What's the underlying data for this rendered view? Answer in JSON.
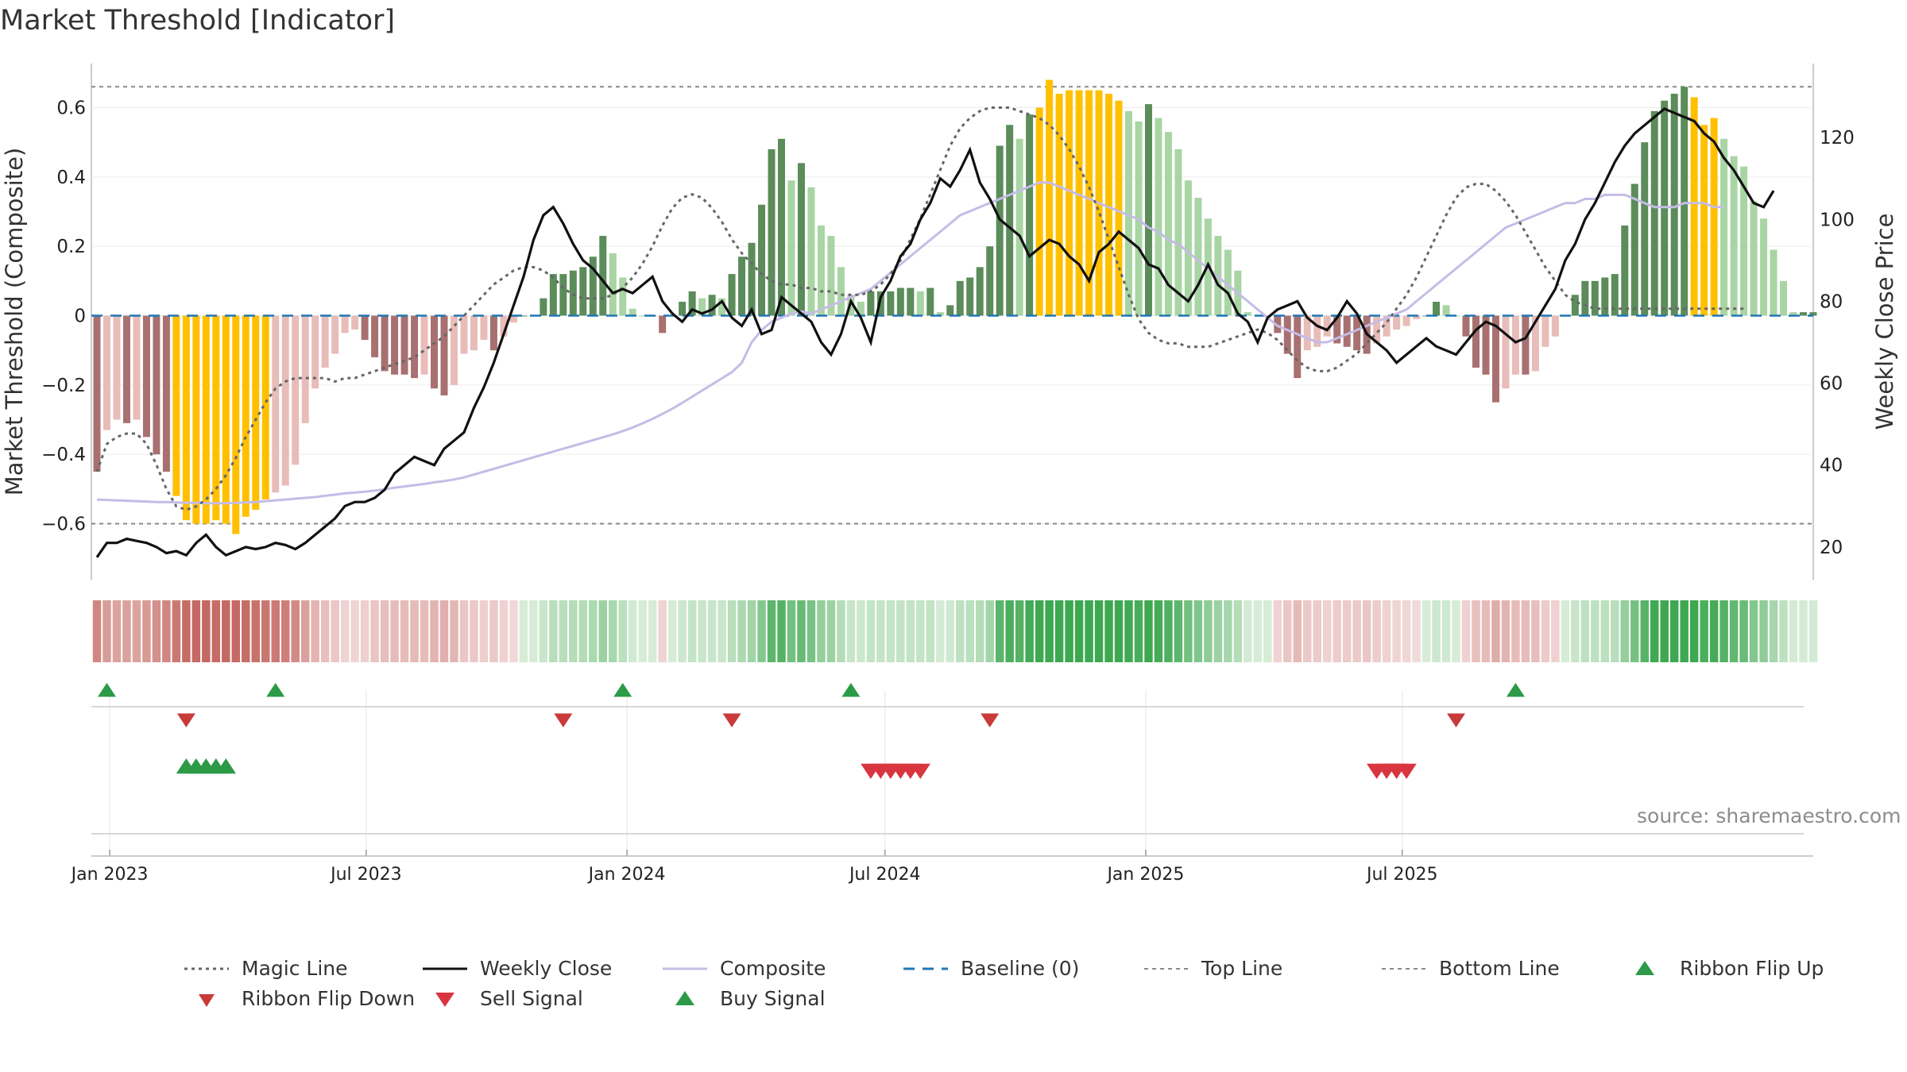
{
  "title": "Market Threshold [Indicator]",
  "source": "source: sharemaestro.com",
  "colors": {
    "weekly_close": "#111111",
    "composite": "#c5bce6",
    "magic_line": "#666666",
    "baseline": "#1f77b4",
    "threshold_lines": "#888888",
    "extreme": "#ffc000",
    "pos_strong": "#5b8c5a",
    "pos_weak": "#a8d5a3",
    "neg_strong": "#a87070",
    "neg_weak": "#e8bcb8",
    "buy": "#2c9a46",
    "sell": "#d93540"
  },
  "chart_data": {
    "type": "bar",
    "x_start": "2022-12-23",
    "x_step_days": 7,
    "x_ticks": [
      "Jan 2023",
      "Jul 2023",
      "Jan 2024",
      "Jul 2024",
      "Jan 2025",
      "Jul 2025"
    ],
    "left_axis": {
      "label": "Market Threshold (Composite)",
      "ticks": [
        "0.6",
        "0.4",
        "0.2",
        "0",
        "−0.2",
        "−0.4",
        "−0.6"
      ],
      "ylim": [
        -0.75,
        0.75
      ]
    },
    "right_axis": {
      "label": "Weekly Close Price",
      "ticks": [
        "120",
        "100",
        "80",
        "60",
        "40",
        "20"
      ],
      "ylim": [
        13,
        140
      ]
    },
    "top_line": 0.66,
    "bottom_line": -0.6,
    "threshold_bars": [
      -0.45,
      -0.33,
      -0.3,
      -0.31,
      -0.3,
      -0.35,
      -0.4,
      -0.45,
      -0.52,
      -0.59,
      -0.6,
      -0.6,
      -0.59,
      -0.6,
      -0.63,
      -0.58,
      -0.56,
      -0.53,
      -0.51,
      -0.49,
      -0.43,
      -0.31,
      -0.21,
      -0.15,
      -0.11,
      -0.05,
      -0.04,
      -0.07,
      -0.12,
      -0.16,
      -0.17,
      -0.17,
      -0.18,
      -0.17,
      -0.21,
      -0.23,
      -0.2,
      -0.11,
      -0.1,
      -0.07,
      -0.1,
      -0.06,
      -0.02,
      0.0,
      0.0,
      0.05,
      0.12,
      0.12,
      0.13,
      0.14,
      0.17,
      0.23,
      0.18,
      0.11,
      0.02,
      0.0,
      0.0,
      -0.05,
      0.0,
      0.04,
      0.07,
      0.05,
      0.06,
      0.05,
      0.12,
      0.17,
      0.21,
      0.32,
      0.48,
      0.51,
      0.39,
      0.44,
      0.37,
      0.26,
      0.23,
      0.14,
      0.06,
      0.04,
      0.07,
      0.07,
      0.07,
      0.08,
      0.08,
      0.07,
      0.08,
      0.01,
      0.03,
      0.1,
      0.11,
      0.14,
      0.2,
      0.49,
      0.55,
      0.51,
      0.58,
      0.6,
      0.68,
      0.64,
      0.65,
      0.65,
      0.65,
      0.65,
      0.64,
      0.62,
      0.59,
      0.56,
      0.61,
      0.57,
      0.53,
      0.48,
      0.39,
      0.34,
      0.28,
      0.23,
      0.19,
      0.13,
      0.01,
      0.0,
      0.0,
      -0.05,
      -0.11,
      -0.18,
      -0.1,
      -0.09,
      -0.06,
      -0.08,
      -0.09,
      -0.1,
      -0.11,
      -0.08,
      -0.06,
      -0.04,
      -0.03,
      -0.01,
      0.0,
      0.04,
      0.03,
      0.0,
      -0.06,
      -0.15,
      -0.17,
      -0.25,
      -0.21,
      -0.17,
      -0.17,
      -0.16,
      -0.09,
      -0.06,
      0.0,
      0.06,
      0.1,
      0.1,
      0.11,
      0.12,
      0.26,
      0.38,
      0.5,
      0.59,
      0.62,
      0.64,
      0.66,
      0.63,
      0.55,
      0.57,
      0.51,
      0.46,
      0.43,
      0.33,
      0.28,
      0.19,
      0.1,
      0.01,
      0.01,
      0.01
    ],
    "weekly_close": [
      17.5,
      21,
      21,
      22,
      21.5,
      21,
      20,
      18.5,
      19,
      18,
      21,
      23,
      20,
      18,
      19,
      20,
      19.5,
      20,
      21,
      20.5,
      19.5,
      21,
      23,
      25,
      27,
      30,
      31,
      31,
      32,
      34,
      38,
      40,
      42,
      41,
      40,
      44,
      46,
      48,
      54,
      59,
      65,
      72,
      79,
      86,
      95,
      101,
      103,
      99,
      94,
      90,
      88,
      85,
      82,
      83,
      82,
      84,
      86,
      80,
      77,
      75,
      78,
      77,
      78,
      80,
      76,
      74,
      78,
      72,
      73,
      81,
      79,
      77,
      75,
      70,
      67,
      72,
      80,
      76,
      70,
      81,
      85,
      91,
      94,
      100,
      104,
      110,
      108,
      112,
      117,
      109,
      105,
      100,
      98,
      96,
      91,
      93,
      95,
      94,
      91,
      89,
      85,
      92,
      94,
      97,
      95,
      93,
      89,
      88,
      84,
      82,
      80,
      84,
      89,
      84,
      82,
      77,
      75,
      70,
      76,
      78,
      79,
      80,
      76,
      74,
      73,
      76,
      80,
      77,
      72,
      70,
      68,
      65,
      67,
      69,
      71,
      69,
      68,
      67,
      70,
      73,
      75,
      74,
      72,
      70,
      71,
      75,
      79,
      83,
      90,
      94,
      100,
      104,
      109,
      114,
      118,
      121,
      123,
      125,
      127,
      126,
      125,
      124,
      121,
      119,
      115,
      112,
      108,
      104,
      103,
      107
    ],
    "composite": [
      31.6,
      31.5,
      31.4,
      31.3,
      31.2,
      31.1,
      31,
      31,
      30.9,
      30.8,
      30.8,
      30.7,
      30.7,
      30.7,
      30.8,
      30.9,
      31,
      31.2,
      31.4,
      31.6,
      31.8,
      32,
      32.2,
      32.5,
      32.8,
      33.1,
      33.3,
      33.5,
      33.8,
      34.1,
      34.5,
      34.8,
      35.1,
      35.4,
      35.8,
      36.1,
      36.5,
      37,
      37.7,
      38.4,
      39.1,
      39.8,
      40.5,
      41.2,
      41.9,
      42.6,
      43.3,
      44,
      44.7,
      45.4,
      46.1,
      46.8,
      47.5,
      48.3,
      49.2,
      50.2,
      51.3,
      52.5,
      53.8,
      55.2,
      56.7,
      58.2,
      59.7,
      61.2,
      62.7,
      65,
      70,
      73,
      75,
      76,
      77,
      77.5,
      77,
      78,
      79,
      80,
      81,
      82,
      83,
      85,
      87,
      89,
      91,
      93,
      95,
      97,
      99,
      101,
      102,
      103,
      104,
      105,
      106,
      107,
      108,
      109,
      109,
      108,
      107,
      106,
      105,
      104,
      103,
      102,
      101,
      100,
      98,
      97,
      95,
      94,
      92,
      90,
      88,
      86,
      84,
      82,
      80,
      78,
      76,
      74,
      73,
      72,
      71,
      70,
      70,
      71,
      72,
      73,
      74,
      75,
      76,
      77,
      78,
      80,
      82,
      84,
      86,
      88,
      90,
      92,
      94,
      96,
      98,
      99,
      100,
      101,
      102,
      103,
      104,
      104,
      105,
      105,
      106,
      106,
      106,
      105,
      104,
      103,
      103,
      103,
      104,
      104,
      104,
      103,
      103
    ],
    "magic_line": [
      -0.45,
      -0.37,
      -0.35,
      -0.34,
      -0.34,
      -0.37,
      -0.43,
      -0.5,
      -0.55,
      -0.56,
      -0.55,
      -0.53,
      -0.5,
      -0.46,
      -0.41,
      -0.35,
      -0.3,
      -0.25,
      -0.21,
      -0.19,
      -0.18,
      -0.18,
      -0.18,
      -0.18,
      -0.19,
      -0.18,
      -0.18,
      -0.17,
      -0.16,
      -0.15,
      -0.14,
      -0.13,
      -0.12,
      -0.1,
      -0.08,
      -0.06,
      -0.03,
      0.0,
      0.03,
      0.06,
      0.09,
      0.11,
      0.13,
      0.14,
      0.14,
      0.13,
      0.11,
      0.08,
      0.06,
      0.05,
      0.05,
      0.05,
      0.06,
      0.08,
      0.11,
      0.15,
      0.2,
      0.26,
      0.31,
      0.34,
      0.35,
      0.34,
      0.31,
      0.27,
      0.22,
      0.18,
      0.15,
      0.12,
      0.1,
      0.09,
      0.09,
      0.08,
      0.08,
      0.07,
      0.07,
      0.06,
      0.06,
      0.06,
      0.07,
      0.09,
      0.12,
      0.16,
      0.22,
      0.28,
      0.35,
      0.42,
      0.49,
      0.54,
      0.57,
      0.59,
      0.6,
      0.6,
      0.6,
      0.59,
      0.58,
      0.57,
      0.55,
      0.52,
      0.48,
      0.43,
      0.37,
      0.3,
      0.22,
      0.14,
      0.06,
      -0.01,
      -0.05,
      -0.07,
      -0.08,
      -0.08,
      -0.09,
      -0.09,
      -0.09,
      -0.08,
      -0.07,
      -0.06,
      -0.05,
      -0.04,
      -0.05,
      -0.07,
      -0.1,
      -0.13,
      -0.15,
      -0.16,
      -0.16,
      -0.15,
      -0.13,
      -0.11,
      -0.08,
      -0.05,
      -0.02,
      0.02,
      0.06,
      0.11,
      0.17,
      0.23,
      0.29,
      0.34,
      0.37,
      0.38,
      0.38,
      0.36,
      0.33,
      0.29,
      0.24,
      0.19,
      0.14,
      0.1,
      0.06,
      0.04,
      0.03,
      0.02,
      0.02,
      0.02,
      0.02,
      0.02,
      0.02,
      0.02,
      0.02,
      0.02,
      0.02,
      0.02,
      0.02,
      0.02,
      0.02,
      0.02,
      0.02
    ],
    "ribbon_flip_up_weeks": [
      1,
      18,
      53,
      76,
      143
    ],
    "ribbon_flip_down_weeks": [
      9,
      47,
      64,
      90,
      137
    ],
    "buy_signal_weeks": [
      9,
      10,
      11,
      12,
      13
    ],
    "sell_signal_weeks": [
      78,
      79,
      80,
      81,
      82,
      83
    ],
    "sell_signal_weeks_2": [
      129,
      130,
      131,
      132
    ]
  },
  "legend": [
    {
      "label": "Magic Line",
      "kind": "dotted"
    },
    {
      "label": "Weekly Close",
      "kind": "solid-black"
    },
    {
      "label": "Composite",
      "kind": "solid-lavender"
    },
    {
      "label": "Baseline (0)",
      "kind": "dashed-blue"
    },
    {
      "label": "Top Line",
      "kind": "dashed-gray"
    },
    {
      "label": "Bottom Line",
      "kind": "dashed-gray"
    },
    {
      "label": "Ribbon Flip Up",
      "kind": "tri-up"
    },
    {
      "label": "Ribbon Flip Down",
      "kind": "tri-down-dark"
    },
    {
      "label": "Sell Signal",
      "kind": "tri-down"
    },
    {
      "label": "Buy Signal",
      "kind": "tri-up"
    }
  ]
}
